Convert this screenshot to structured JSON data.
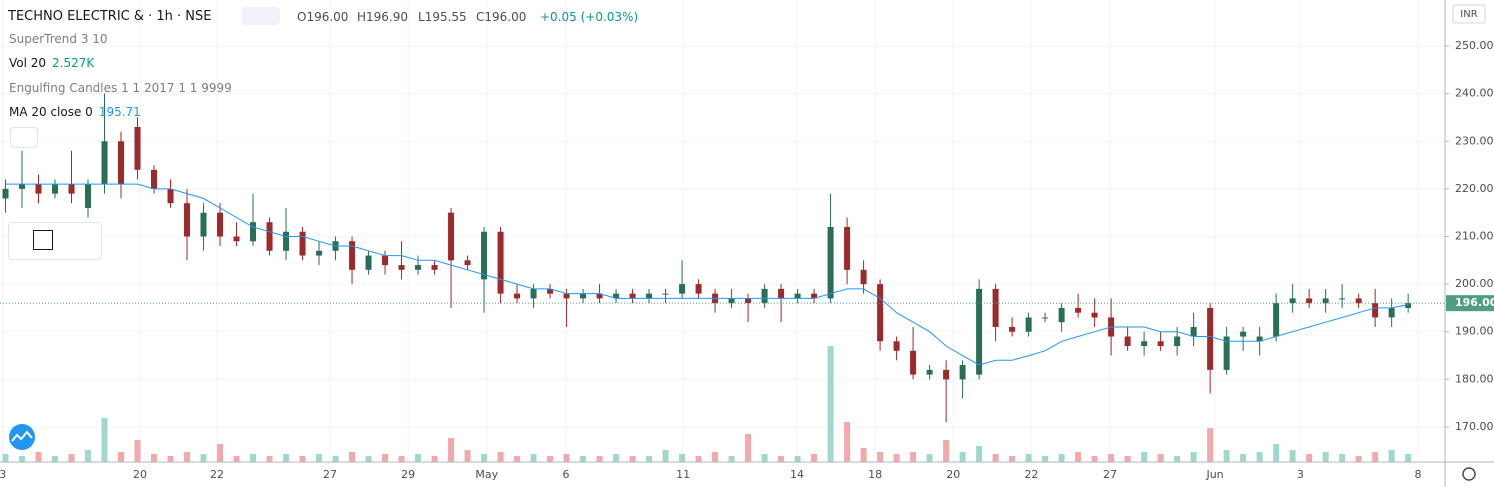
{
  "header": {
    "symbol": "TECHNO ELECTRIC & · 1h · NSE",
    "open": "O196.00",
    "high": "H196.90",
    "low": "L195.55",
    "close": "C196.00",
    "change": "+0.05 (+0.03%)"
  },
  "currency": "INR",
  "chart_data": {
    "type": "candlestick",
    "indicators": [
      {
        "name": "SuperTrend 3 10"
      },
      {
        "name": "Vol 20",
        "value_label": "2.527K"
      },
      {
        "name": "Engulfing Candles 1 1 2017 1 1 9999"
      },
      {
        "name": "MA 20 close 0",
        "value_label": "195.71"
      }
    ],
    "x": [
      1,
      4,
      7,
      10,
      13,
      16,
      19,
      22,
      25,
      28,
      31,
      34,
      37,
      40,
      43,
      46,
      49,
      52,
      55,
      58,
      61,
      64,
      67,
      70,
      73,
      76,
      79,
      82,
      85,
      88,
      91,
      94,
      97,
      100,
      103,
      106,
      109,
      112,
      115,
      118,
      121,
      124,
      127,
      130,
      133,
      136,
      139,
      142,
      145,
      148,
      151,
      154,
      157,
      160,
      163,
      166,
      169,
      172,
      175,
      178,
      181,
      184,
      187,
      190,
      193,
      196,
      199,
      202,
      205,
      208,
      211,
      214,
      217,
      220,
      223,
      226,
      229,
      232,
      235,
      238,
      241,
      244,
      247,
      250,
      253,
      256
    ],
    "open": [
      218,
      220,
      221,
      219,
      221,
      216,
      221,
      230,
      233,
      224,
      220,
      217,
      210,
      215,
      210,
      209,
      213,
      207,
      211,
      206,
      207,
      209,
      203,
      206,
      204,
      203,
      204,
      215,
      205,
      201,
      211,
      198,
      197,
      199,
      198,
      197,
      198,
      197,
      198,
      197,
      198,
      198,
      200,
      198,
      196,
      197,
      196,
      199,
      197,
      198,
      197,
      212,
      203,
      200,
      188,
      186,
      181,
      182,
      180,
      181,
      199,
      191,
      190,
      193,
      192,
      195,
      194,
      193,
      189,
      187,
      188,
      187,
      189,
      195,
      182,
      189,
      188,
      189,
      196,
      197,
      196,
      197,
      197,
      196,
      193,
      195
    ],
    "high": [
      222,
      228,
      223,
      222,
      228,
      222,
      240,
      232,
      235,
      225,
      222,
      220,
      217,
      217,
      213,
      219,
      214,
      216,
      212,
      209,
      210,
      210,
      207,
      207,
      209,
      206,
      205,
      216,
      206,
      212,
      212,
      200,
      200,
      200,
      199,
      199,
      200,
      199,
      199,
      199,
      199,
      205,
      201,
      199,
      199,
      198,
      200,
      200,
      199,
      199,
      219,
      214,
      205,
      201,
      189,
      191,
      183,
      184,
      184,
      201,
      200,
      193,
      194,
      194,
      196,
      198,
      197,
      197,
      191,
      190,
      190,
      191,
      194,
      196,
      191,
      191,
      191,
      198,
      200,
      199,
      199,
      200,
      198,
      199,
      197,
      198
    ],
    "low": [
      215,
      216,
      217,
      218,
      217,
      214,
      219,
      218,
      222,
      219,
      216,
      205,
      207,
      208,
      208,
      208,
      206,
      205,
      205,
      204,
      205,
      200,
      202,
      202,
      201,
      202,
      202,
      195,
      203,
      194,
      196,
      196,
      195,
      197,
      191,
      196,
      196,
      196,
      196,
      196,
      196,
      197,
      197,
      194,
      195,
      192,
      195,
      192,
      196,
      196,
      196,
      200,
      198,
      186,
      184,
      180,
      180,
      171,
      176,
      180,
      188,
      189,
      189,
      192,
      190,
      193,
      191,
      185,
      186,
      185,
      186,
      185,
      187,
      177,
      181,
      186,
      185,
      188,
      194,
      195,
      194,
      195,
      195,
      191,
      191,
      194
    ],
    "close": [
      220,
      221,
      219,
      221,
      219,
      221,
      230,
      221,
      224,
      220,
      217,
      210,
      215,
      210,
      209,
      213,
      207,
      211,
      206,
      207,
      209,
      203,
      206,
      204,
      203,
      204,
      203,
      205,
      204,
      211,
      198,
      197,
      199,
      198,
      197,
      198,
      197,
      198,
      197,
      198,
      198,
      200,
      198,
      196,
      197,
      196,
      199,
      197,
      198,
      197,
      212,
      203,
      200,
      188,
      186,
      181,
      182,
      180,
      183,
      199,
      191,
      190,
      193,
      193,
      195,
      194,
      193,
      189,
      187,
      188,
      187,
      189,
      191,
      182,
      189,
      190,
      189,
      196,
      197,
      196,
      197,
      197,
      196,
      193,
      195,
      196
    ],
    "volume": [
      4,
      3,
      5,
      3,
      4,
      6,
      22,
      5,
      11,
      4,
      3,
      5,
      4,
      9,
      3,
      4,
      3,
      4,
      3,
      4,
      3,
      5,
      3,
      4,
      3,
      4,
      3,
      12,
      6,
      4,
      5,
      3,
      4,
      3,
      4,
      3,
      3,
      4,
      3,
      3,
      6,
      4,
      3,
      5,
      3,
      14,
      4,
      3,
      3,
      4,
      58,
      20,
      7,
      5,
      4,
      5,
      4,
      11,
      5,
      8,
      4,
      3,
      4,
      3,
      4,
      5,
      3,
      4,
      3,
      5,
      4,
      3,
      5,
      17,
      6,
      4,
      5,
      9,
      6,
      4,
      5,
      4,
      3,
      5,
      6,
      4
    ],
    "vlim": [
      0,
      231
    ],
    "ma": {
      "color": "#2196f3",
      "values": [
        221,
        221,
        221,
        221,
        221,
        221,
        221,
        221,
        221,
        220,
        220,
        219,
        218,
        216,
        214,
        212,
        211,
        210,
        210,
        209,
        208,
        208,
        207,
        206,
        206,
        205,
        205,
        204,
        203,
        202,
        201,
        200,
        199,
        199,
        198,
        198,
        198,
        197,
        197,
        197,
        197,
        197,
        197,
        197,
        197,
        197,
        197,
        197,
        197,
        197,
        198,
        199,
        199,
        197,
        194,
        192,
        190,
        187,
        185,
        183,
        184,
        184,
        185,
        186,
        188,
        189,
        190,
        191,
        191,
        191,
        190,
        190,
        189,
        189,
        188,
        188,
        188,
        189,
        190,
        191,
        192,
        193,
        194,
        195,
        195,
        195.71
      ]
    },
    "up_color": "#2a6e55",
    "down_color": "#9c2a2a",
    "volume_up_color": "#9fd8cc",
    "volume_down_color": "#f3a9a9",
    "last_price": {
      "value": 196,
      "label": "196.00",
      "color": "#4e9e7f"
    },
    "xlim": [
      0,
      262.7
    ],
    "ylim": [
      162.65,
      259.66
    ],
    "xticks": [
      {
        "value": 0.5,
        "label": "3"
      },
      {
        "value": 25.45,
        "label": "20"
      },
      {
        "value": 39.45,
        "label": "22"
      },
      {
        "value": 60,
        "label": "27"
      },
      {
        "value": 74.2,
        "label": "29"
      },
      {
        "value": 88.5,
        "label": "May"
      },
      {
        "value": 102.9,
        "label": "6"
      },
      {
        "value": 124.2,
        "label": "11"
      },
      {
        "value": 144.9,
        "label": "14"
      },
      {
        "value": 159.1,
        "label": "18"
      },
      {
        "value": 173.3,
        "label": "20"
      },
      {
        "value": 187.5,
        "label": "22"
      },
      {
        "value": 201.8,
        "label": "27"
      },
      {
        "value": 220.9,
        "label": "Jun"
      },
      {
        "value": 236.4,
        "label": "3"
      },
      {
        "value": 257.8,
        "label": "8"
      }
    ],
    "yticks": [
      {
        "value": 170,
        "label": "170.00"
      },
      {
        "value": 180,
        "label": "180.00"
      },
      {
        "value": 190,
        "label": "190.00"
      },
      {
        "value": 200,
        "label": "200.00"
      },
      {
        "value": 210,
        "label": "210.00"
      },
      {
        "value": 220,
        "label": "220.00"
      },
      {
        "value": 230,
        "label": "230.00"
      },
      {
        "value": 240,
        "label": "240.00"
      },
      {
        "value": 250,
        "label": "250.00"
      }
    ],
    "grid": true
  }
}
